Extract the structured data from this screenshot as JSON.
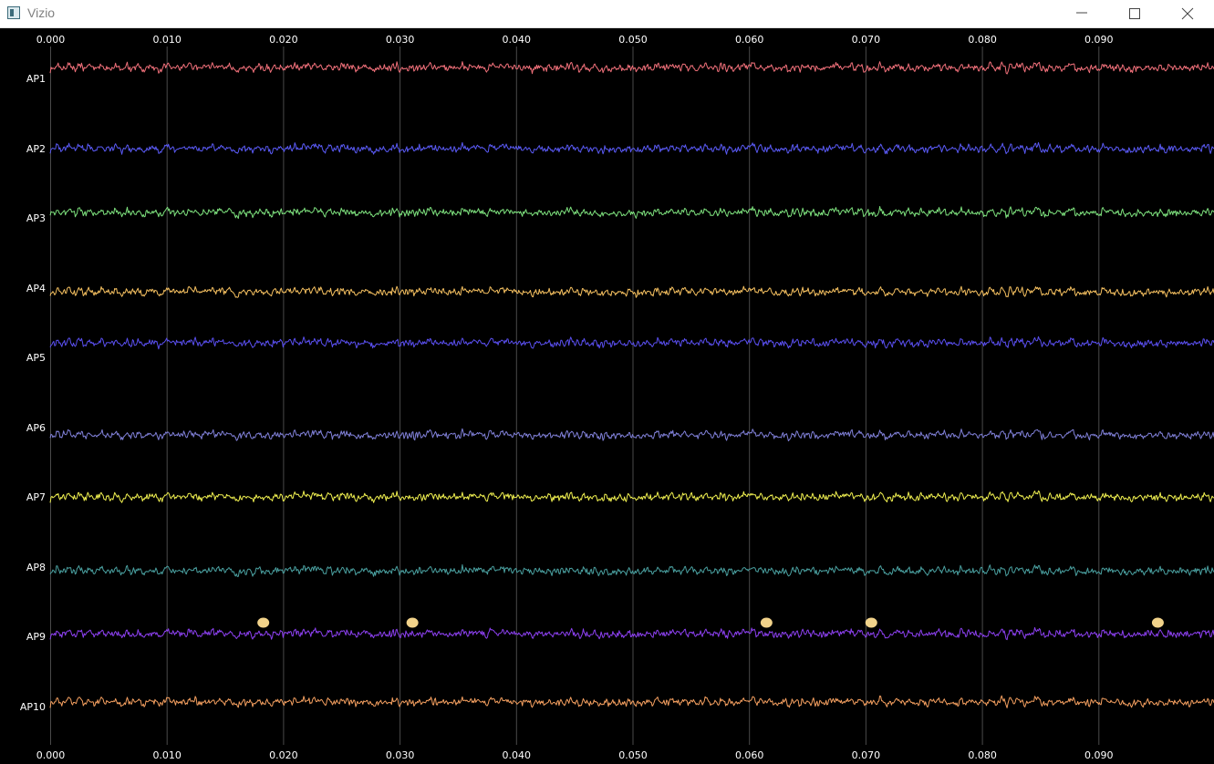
{
  "window": {
    "title": "Vizio",
    "icon": "app-window-icon",
    "controls": {
      "minimize": "minimize-icon",
      "maximize": "maximize-icon",
      "close": "close-icon"
    }
  },
  "colors": {
    "background": "#000000",
    "grid": "#4a4a4a",
    "axis_text": "#ffffff",
    "event_marker": "#f2d38a"
  },
  "chart_data": {
    "type": "line",
    "x_ticks": [
      "0.000",
      "0.010",
      "0.020",
      "0.030",
      "0.040",
      "0.050",
      "0.060",
      "0.070",
      "0.080",
      "0.090"
    ],
    "xlim": [
      0,
      0.1
    ],
    "grid": "vertical",
    "series": [
      {
        "name": "AP1",
        "color": "#f0707a"
      },
      {
        "name": "AP2",
        "color": "#5a5af5"
      },
      {
        "name": "AP3",
        "color": "#7de07d"
      },
      {
        "name": "AP4",
        "color": "#f5c060"
      },
      {
        "name": "AP5",
        "color": "#5a4ff0"
      },
      {
        "name": "AP6",
        "color": "#8080d8"
      },
      {
        "name": "AP7",
        "color": "#f0f050"
      },
      {
        "name": "AP8",
        "color": "#4aa0a0"
      },
      {
        "name": "AP9",
        "color": "#8c40f0"
      },
      {
        "name": "AP10",
        "color": "#f5a060"
      }
    ],
    "events": {
      "channel": "AP9",
      "x": [
        0.0183,
        0.0311,
        0.0615,
        0.0705,
        0.0951
      ]
    }
  }
}
